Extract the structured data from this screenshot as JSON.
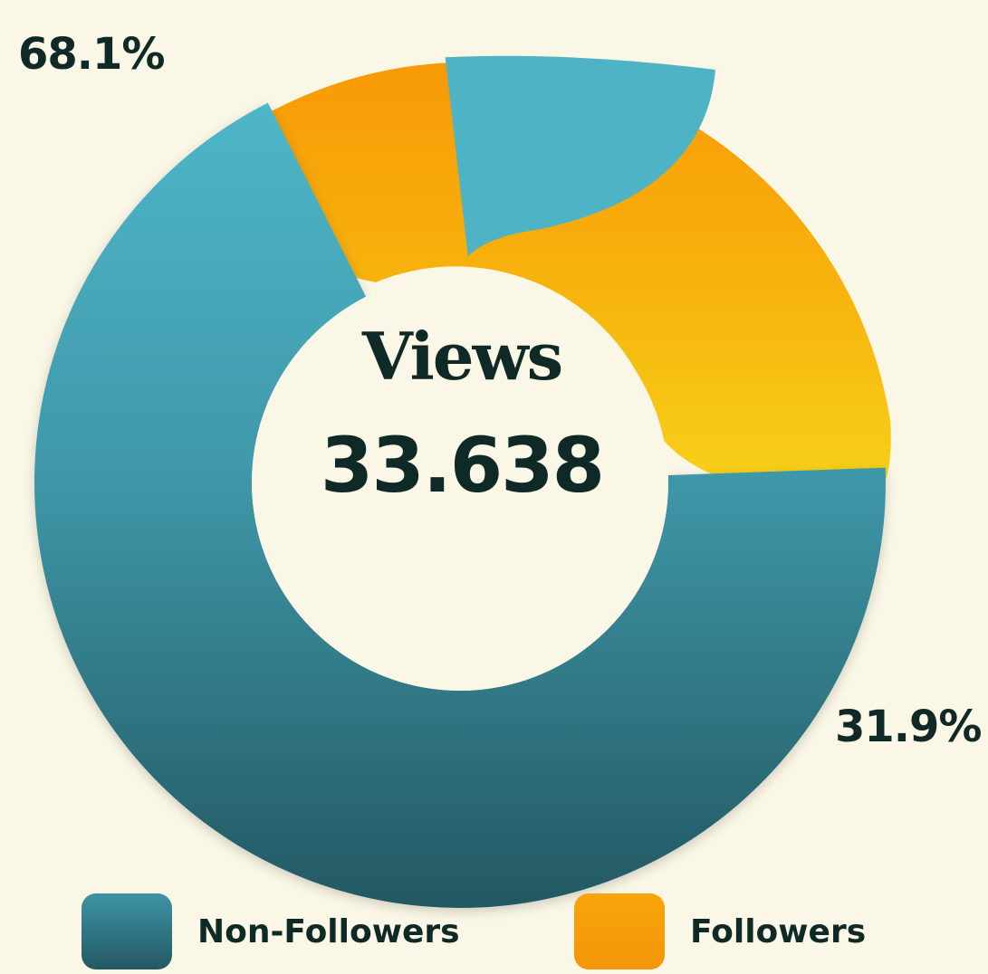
{
  "chart_data": {
    "type": "pie",
    "variant": "donut",
    "title": "",
    "center_label": "Views",
    "center_value": "33.638",
    "slices": [
      {
        "label": "Non-Followers",
        "value": 68.1,
        "display": "68.1%",
        "color_top": "#4eb6c8",
        "color_bottom": "#235862"
      },
      {
        "label": "Followers",
        "value": 31.9,
        "display": "31.9%",
        "color_top": "#f79a05",
        "color_bottom": "#f7d21a"
      }
    ],
    "legend_position": "bottom"
  }
}
